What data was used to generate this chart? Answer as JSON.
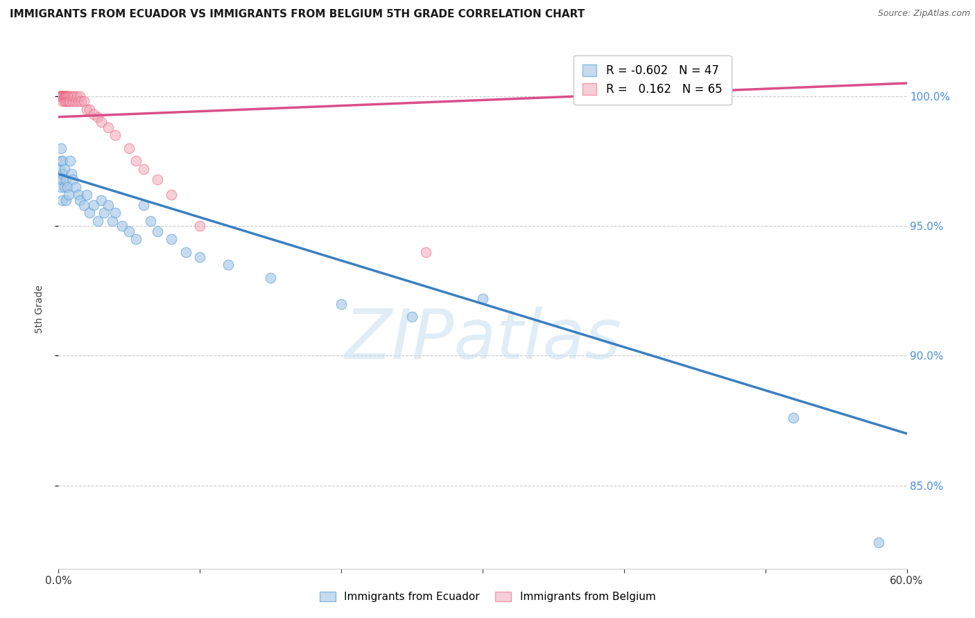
{
  "title": "IMMIGRANTS FROM ECUADOR VS IMMIGRANTS FROM BELGIUM 5TH GRADE CORRELATION CHART",
  "source": "Source: ZipAtlas.com",
  "ylabel": "5th Grade",
  "ecuador_color": "#a8c8e8",
  "ecuador_edge": "#5a9fd4",
  "belgium_color": "#f4a7b9",
  "belgium_edge": "#e8607a",
  "ecuador_R": -0.602,
  "ecuador_N": 47,
  "belgium_R": 0.162,
  "belgium_N": 65,
  "ecuador_line_color": "#3a7fc1",
  "belgium_line_color": "#d94f8a",
  "legend_ecuador_label": "Immigrants from Ecuador",
  "legend_belgium_label": "Immigrants from Belgium",
  "xmin": 0.0,
  "xmax": 0.6,
  "ymin": 0.818,
  "ymax": 1.018,
  "ytick_values": [
    0.85,
    0.9,
    0.95,
    1.0
  ],
  "ytick_labels": [
    "85.0%",
    "90.0%",
    "95.0%",
    "100.0%"
  ],
  "ecuador_x": [
    0.001,
    0.001,
    0.002,
    0.002,
    0.002,
    0.003,
    0.003,
    0.003,
    0.003,
    0.004,
    0.004,
    0.005,
    0.005,
    0.006,
    0.007,
    0.008,
    0.009,
    0.01,
    0.012,
    0.014,
    0.015,
    0.018,
    0.02,
    0.022,
    0.025,
    0.028,
    0.03,
    0.032,
    0.035,
    0.038,
    0.04,
    0.045,
    0.05,
    0.055,
    0.06,
    0.065,
    0.07,
    0.08,
    0.09,
    0.1,
    0.12,
    0.15,
    0.2,
    0.25,
    0.3,
    0.52,
    0.58
  ],
  "ecuador_y": [
    0.972,
    0.968,
    0.975,
    0.965,
    0.98,
    0.97,
    0.975,
    0.96,
    0.968,
    0.965,
    0.972,
    0.96,
    0.968,
    0.965,
    0.962,
    0.975,
    0.97,
    0.968,
    0.965,
    0.962,
    0.96,
    0.958,
    0.962,
    0.955,
    0.958,
    0.952,
    0.96,
    0.955,
    0.958,
    0.952,
    0.955,
    0.95,
    0.948,
    0.945,
    0.958,
    0.952,
    0.948,
    0.945,
    0.94,
    0.938,
    0.935,
    0.93,
    0.92,
    0.915,
    0.922,
    0.876,
    0.828
  ],
  "belgium_x": [
    0.001,
    0.001,
    0.001,
    0.002,
    0.002,
    0.002,
    0.002,
    0.002,
    0.002,
    0.002,
    0.002,
    0.002,
    0.003,
    0.003,
    0.003,
    0.003,
    0.003,
    0.003,
    0.003,
    0.003,
    0.004,
    0.004,
    0.004,
    0.004,
    0.004,
    0.004,
    0.004,
    0.005,
    0.005,
    0.005,
    0.005,
    0.005,
    0.006,
    0.006,
    0.006,
    0.006,
    0.007,
    0.007,
    0.007,
    0.008,
    0.008,
    0.009,
    0.01,
    0.01,
    0.011,
    0.012,
    0.013,
    0.014,
    0.015,
    0.016,
    0.018,
    0.02,
    0.022,
    0.025,
    0.028,
    0.03,
    0.035,
    0.04,
    0.05,
    0.055,
    0.06,
    0.07,
    0.08,
    0.1,
    0.26
  ],
  "belgium_y": [
    1.0,
    1.0,
    1.0,
    1.0,
    1.0,
    1.0,
    1.0,
    1.0,
    1.0,
    1.0,
    1.0,
    1.0,
    1.0,
    1.0,
    1.0,
    1.0,
    1.0,
    1.0,
    1.0,
    0.998,
    1.0,
    1.0,
    1.0,
    1.0,
    1.0,
    1.0,
    0.998,
    1.0,
    1.0,
    1.0,
    1.0,
    0.998,
    1.0,
    1.0,
    1.0,
    0.998,
    1.0,
    1.0,
    0.998,
    1.0,
    0.998,
    1.0,
    1.0,
    0.998,
    1.0,
    0.998,
    1.0,
    0.998,
    1.0,
    0.998,
    0.998,
    0.995,
    0.995,
    0.993,
    0.992,
    0.99,
    0.988,
    0.985,
    0.98,
    0.975,
    0.972,
    0.968,
    0.962,
    0.95,
    0.94
  ],
  "watermark_text": "ZIPatlas",
  "watermark_color": "#c8dff0",
  "watermark_alpha": 0.55
}
